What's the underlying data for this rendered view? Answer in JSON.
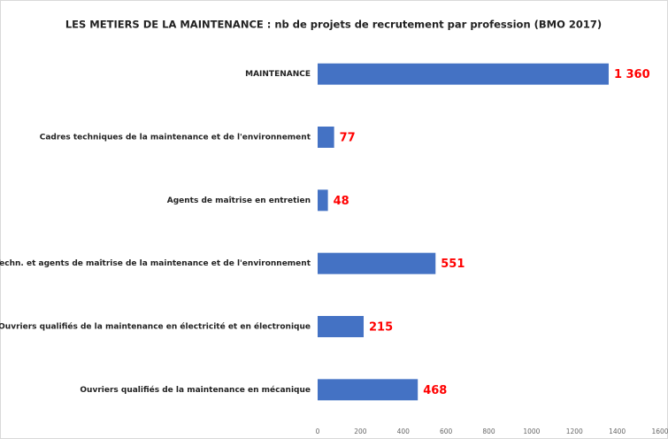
{
  "chart_data": {
    "type": "bar",
    "orientation": "horizontal",
    "title": "LES METIERS DE LA MAINTENANCE : nb de projets de recrutement par profession (BMO 2017)",
    "categories": [
      "MAINTENANCE",
      "Cadres techniques de la maintenance et de l'environnement",
      "Agents de maîtrise en entretien",
      "Techn. et agents de maîtrise de la maintenance et de l'environnement",
      "Ouvriers qualifiés de la maintenance en électricité et en électronique",
      "Ouvriers qualifiés de la maintenance en mécanique"
    ],
    "values": [
      1360,
      77,
      48,
      551,
      215,
      468
    ],
    "value_labels": [
      "1 360",
      "77",
      "48",
      "551",
      "215",
      "468"
    ],
    "color": "#4472c4",
    "xlim": [
      0,
      1600
    ],
    "xticks": [
      0,
      200,
      400,
      600,
      800,
      1000,
      1200,
      1400,
      1600
    ],
    "grid": false
  }
}
